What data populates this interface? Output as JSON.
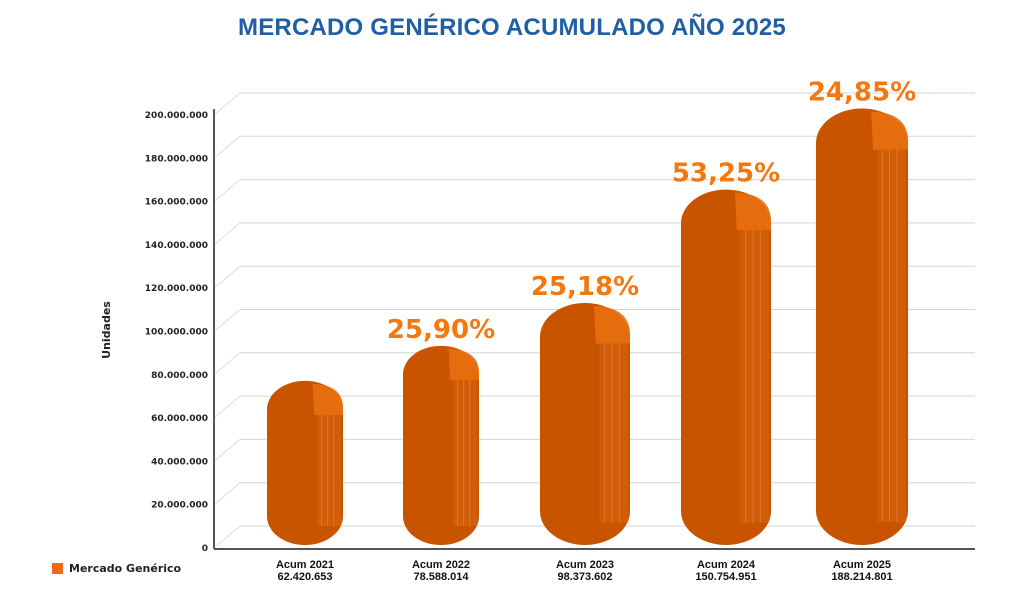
{
  "chart_data": {
    "type": "bar",
    "title": "MERCADO GENÉRICO ACUMULADO AÑO 2025",
    "xlabel": "",
    "ylabel": "Unidades",
    "ylim": [
      0,
      200000000
    ],
    "yticks": [
      0,
      20000000,
      40000000,
      60000000,
      80000000,
      100000000,
      120000000,
      140000000,
      160000000,
      180000000,
      200000000
    ],
    "ytick_labels": [
      "0",
      "20.000.000",
      "40.000.000",
      "60.000.000",
      "80.000.000",
      "100.000.000",
      "120.000.000",
      "140.000.000",
      "160.000.000",
      "180.000.000",
      "200.000.000"
    ],
    "categories": [
      "Acum 2021",
      "Acum 2022",
      "Acum 2023",
      "Acum 2024",
      "Acum 2025"
    ],
    "value_labels": [
      "62.420.653",
      "78.588.014",
      "98.373.602",
      "150.754.951",
      "188.214.801"
    ],
    "series": [
      {
        "name": "Mercado Genérico",
        "values": [
          62420653,
          78588014,
          98373602,
          150754951,
          188214801
        ]
      }
    ],
    "growth_labels": [
      "",
      "25,90%",
      "25,18%",
      "53,25%",
      "24,85%"
    ],
    "legend": "bottom-left",
    "grid": true,
    "colors": {
      "bar": "#c85400",
      "bar_top": "#e8700f",
      "growth": "#f5780f",
      "title": "#1f5fa3"
    }
  }
}
